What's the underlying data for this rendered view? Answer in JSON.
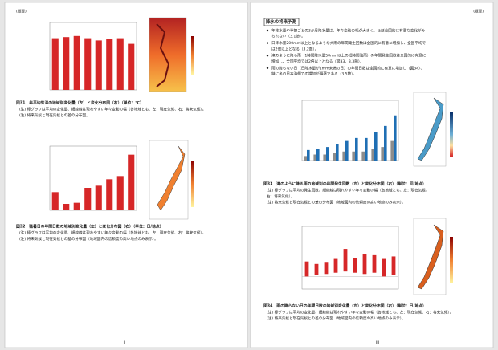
{
  "left_page": {
    "header": "(概要)",
    "page_number": "II",
    "figures": [
      {
        "caption": "図31　年平均気温の地域別変化量（左）と変化分布図（右）（単位：℃）",
        "notes": [
          "(注) 棒グラフは平均の変化量、細線線は現れやすい年々変動の幅（各地域とも、左：現在気候、右：将来気候）。",
          "(注) 将来気候と現在気候との差の分布図。"
        ],
        "chart": {
          "type": "bar",
          "ylim": [
            0,
            6
          ],
          "series": [
            {
              "color": "#d62728",
              "values": [
                4.6,
                4.7,
                4.8,
                4.6,
                4.4,
                4.5,
                4.6,
                4.1
              ]
            }
          ]
        }
      },
      {
        "caption": "図32　猛暑日の年間日数の地域別変化量（左）と変化分布図（右）（単位：日/地点）",
        "notes": [
          "(注) 棒グラフは平均の変化量、細線線は現れやすい年々変動の幅（各地域とも、左：現在気候、右：将来気候）。",
          "(注) 将来気候と現在気候との差の分布図（地域図内の信頼度の高い地点のみ表示）。"
        ],
        "chart": {
          "type": "bar",
          "ylim": [
            0,
            60
          ],
          "series": [
            {
              "color": "#d62728",
              "values": [
                17,
                6,
                7,
                21,
                23,
                29,
                32,
                52
              ]
            }
          ]
        }
      }
    ]
  },
  "right_page": {
    "header": "(概要)",
    "page_number": "III",
    "section_title": "降水の将来予測",
    "bullets": [
      [
        "年降水量や季節ごとの3か月降水量は、年々変動の幅が大きく、ほぼ全国的に有意な変化がみ",
        "られない（3.1節）。"
      ],
      [
        "日降水量200mm以上となるような大雨の年間発生回数は全国的に有意に増加し、全国平均で",
        "は2倍以上となる（3.2節）。"
      ],
      [
        "滝のように降る雨（1時間降水量50mm以上の短時間強雨）の年間発生回数は全国的に有意に",
        "増加し、全国平均では2倍以上となる（図33、3.3節）。"
      ],
      [
        "雨の降らない日（日降水量が1mm未満の日）の年間日数は全国的に有意に増加し（図34）、",
        "特に冬の日本海側での増加が顕著である（3.5節）。"
      ]
    ],
    "figures": [
      {
        "caption": "図33　滝のように降る雨の地域別の年間発生回数（左）と変化分布図（右）（単位：回/地点）",
        "notes": [
          "(注) 棒グラフは平均の発生回数、細線線は現れやすい年々変動の幅（各地域とも、左：現在気候、",
          "右：将来気候）。",
          "(注) 将来気候と現在気候との差の分布図（地域図内の信頼度の高い地点のみ表示）。"
        ],
        "chart": {
          "type": "bar",
          "ylim": [
            0,
            4
          ],
          "series": [
            {
              "color": "#8c8c8c",
              "values": [
                0.3,
                0.4,
                0.4,
                0.5,
                0.6,
                0.6,
                0.6,
                0.8,
                0.9,
                1.3
              ]
            },
            {
              "color": "#1f6fb4",
              "values": [
                0.7,
                0.8,
                0.9,
                1.1,
                1.3,
                1.5,
                1.5,
                1.9,
                2.3,
                3.0
              ]
            }
          ]
        }
      },
      {
        "caption": "図34　雨の降らない日の年間日数の地域別変化量（左）と変化分布図（右）（単位：日/地点）",
        "notes": [
          "(注) 棒グラフは平均の変化量、細線線は現れやすい年々変動の幅（各地域とも、左：現在気候、右：将来気候）。",
          "(注) 将来気候と現在気候との差の分布図（地域図内の信頼度の高い地点のみ表示）。"
        ],
        "chart": {
          "type": "box",
          "ylim": [
            -10,
            40
          ],
          "color": "#d62728",
          "lows": [
            0,
            1,
            2,
            3,
            4,
            3,
            2,
            3,
            0,
            1
          ],
          "highs": [
            12,
            10,
            11,
            14,
            22,
            15,
            18,
            17,
            14,
            16
          ]
        }
      }
    ]
  }
}
